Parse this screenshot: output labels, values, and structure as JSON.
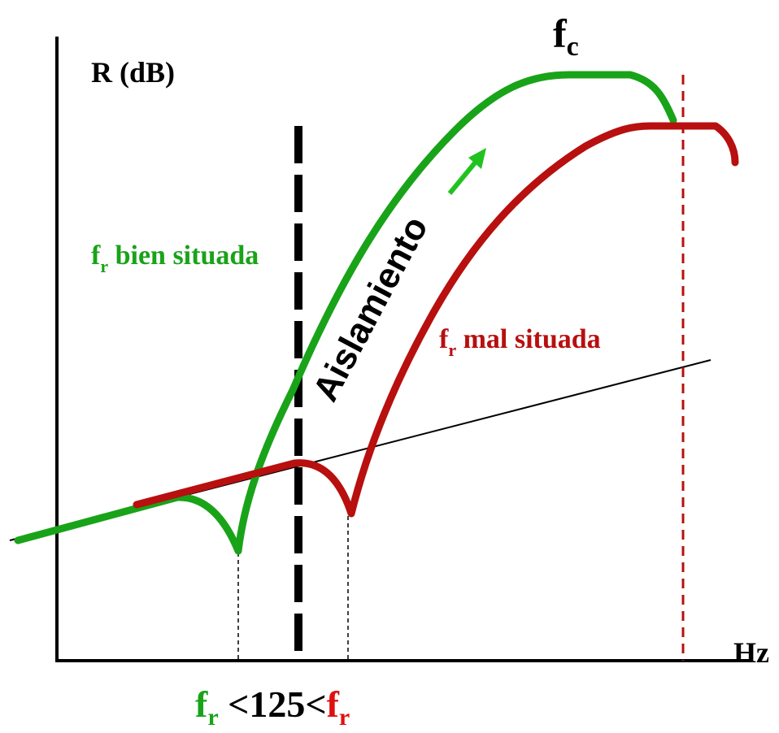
{
  "axes": {
    "y_label": "R (dB)",
    "x_label": "Hz"
  },
  "labels": {
    "fc": {
      "main": "f",
      "sub": "c"
    },
    "aislamiento": "Aislamiento",
    "fr_good": {
      "main": "f",
      "sub": "r",
      "rest": " bien situada"
    },
    "fr_bad": {
      "main": "f",
      "sub": "r",
      "rest": " mal situada"
    },
    "bottom": {
      "fr_green": {
        "main": "f",
        "sub": "r"
      },
      "middle": " <125<",
      "fr_red": {
        "main": "f",
        "sub": "r"
      }
    }
  },
  "colors": {
    "green": "#19a319",
    "red": "#b80f0f",
    "axis": "#000000",
    "arrow": "#21c21f",
    "bottom_red": "#e01010"
  }
}
